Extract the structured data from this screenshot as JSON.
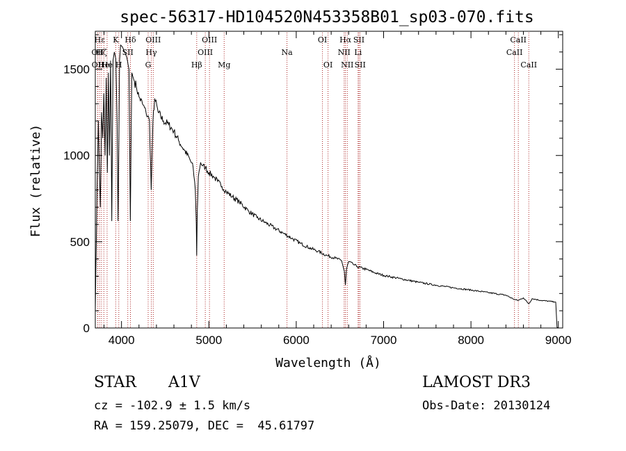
{
  "chart_data": {
    "type": "line",
    "title": "spec-56317-HD104520N453358B01_sp03-070.fits",
    "xlabel": "Wavelength (Å)",
    "ylabel": "Flux (relative)",
    "xlim": [
      3700,
      9050
    ],
    "ylim": [
      0,
      1720
    ],
    "xticks": [
      4000,
      5000,
      6000,
      7000,
      8000,
      9000
    ],
    "yticks": [
      0,
      500,
      1000,
      1500
    ],
    "grid": false,
    "line_color": "#000000",
    "marker_color": "#aa2222",
    "series": [
      {
        "name": "flux",
        "x": [
          3700,
          3720,
          3735,
          3745,
          3758,
          3772,
          3785,
          3798,
          3812,
          3825,
          3838,
          3850,
          3862,
          3875,
          3889,
          3903,
          3918,
          3935,
          3950,
          3960,
          3970,
          3978,
          3990,
          4010,
          4035,
          4060,
          4085,
          4101,
          4118,
          4140,
          4170,
          4200,
          4240,
          4280,
          4320,
          4340,
          4360,
          4380,
          4420,
          4480,
          4540,
          4600,
          4660,
          4720,
          4780,
          4820,
          4845,
          4856,
          4861,
          4866,
          4880,
          4905,
          4930,
          4960,
          5000,
          5050,
          5100,
          5150,
          5200,
          5270,
          5350,
          5450,
          5550,
          5650,
          5750,
          5850,
          5950,
          6050,
          6150,
          6250,
          6350,
          6450,
          6520,
          6550,
          6563,
          6575,
          6600,
          6650,
          6700,
          6800,
          6900,
          7000,
          7200,
          7400,
          7600,
          7800,
          8000,
          8200,
          8400,
          8498,
          8542,
          8600,
          8662,
          8700,
          8800,
          8900,
          8970,
          8985,
          9000
        ],
        "y": [
          100,
          800,
          1200,
          950,
          700,
          1250,
          1100,
          1360,
          1000,
          1450,
          900,
          1480,
          1000,
          1550,
          620,
          1550,
          1600,
          1560,
          1180,
          620,
          1100,
          1550,
          1640,
          1630,
          1600,
          1570,
          1500,
          620,
          1480,
          1440,
          1400,
          1340,
          1300,
          1250,
          1200,
          800,
          1200,
          1330,
          1250,
          1200,
          1180,
          1140,
          1080,
          1030,
          980,
          930,
          800,
          600,
          420,
          650,
          880,
          960,
          940,
          930,
          900,
          880,
          850,
          820,
          790,
          760,
          730,
          680,
          640,
          610,
          580,
          550,
          520,
          490,
          465,
          445,
          420,
          405,
          390,
          330,
          250,
          340,
          385,
          370,
          355,
          340,
          320,
          305,
          285,
          265,
          248,
          233,
          220,
          205,
          190,
          165,
          160,
          175,
          140,
          170,
          160,
          155,
          150,
          5,
          0
        ]
      }
    ],
    "line_markers": [
      {
        "name": "Hε",
        "wavelength": 3750,
        "row": 0
      },
      {
        "name": "OII",
        "wavelength": 3727,
        "row": 1
      },
      {
        "name": "OII",
        "wavelength": 3729,
        "row": 2
      },
      {
        "name": "Hζ",
        "wavelength": 3771,
        "row": 1
      },
      {
        "name": "He",
        "wavelength": 3798,
        "row": 2
      },
      {
        "name": "He",
        "wavelength": 3835,
        "row": 2
      },
      {
        "name": "K",
        "wavelength": 3934,
        "row": 0
      },
      {
        "name": "H",
        "wavelength": 3969,
        "row": 2
      },
      {
        "name": "Hδ",
        "wavelength": 4102,
        "row": 0
      },
      {
        "name": "SII",
        "wavelength": 4072,
        "row": 1
      },
      {
        "name": "OIII",
        "wavelength": 4363,
        "row": 0
      },
      {
        "name": "Hγ",
        "wavelength": 4341,
        "row": 1
      },
      {
        "name": "G",
        "wavelength": 4305,
        "row": 2
      },
      {
        "name": "OIII",
        "wavelength": 5007,
        "row": 0
      },
      {
        "name": "OIII",
        "wavelength": 4959,
        "row": 1
      },
      {
        "name": "Hβ",
        "wavelength": 4861,
        "row": 2
      },
      {
        "name": "Mg",
        "wavelength": 5175,
        "row": 2
      },
      {
        "name": "Na",
        "wavelength": 5894,
        "row": 1
      },
      {
        "name": "OI",
        "wavelength": 6300,
        "row": 0
      },
      {
        "name": "OI",
        "wavelength": 6364,
        "row": 2
      },
      {
        "name": "Hα",
        "wavelength": 6563,
        "row": 0
      },
      {
        "name": "NII",
        "wavelength": 6548,
        "row": 1
      },
      {
        "name": "NII",
        "wavelength": 6584,
        "row": 2
      },
      {
        "name": "SII",
        "wavelength": 6717,
        "row": 0
      },
      {
        "name": "Li",
        "wavelength": 6708,
        "row": 1
      },
      {
        "name": "SII",
        "wavelength": 6731,
        "row": 2
      },
      {
        "name": "CaII",
        "wavelength": 8542,
        "row": 0
      },
      {
        "name": "CaII",
        "wavelength": 8498,
        "row": 1
      },
      {
        "name": "CaII",
        "wavelength": 8662,
        "row": 2
      }
    ]
  },
  "info": {
    "class_label": "STAR",
    "subclass": "A1V",
    "survey": "LAMOST DR3",
    "redshift": "cz = -102.9 ± 1.5 km/s",
    "obs_date": "Obs-Date: 20130124",
    "coords": "RA = 159.25079, DEC =  45.61797"
  }
}
